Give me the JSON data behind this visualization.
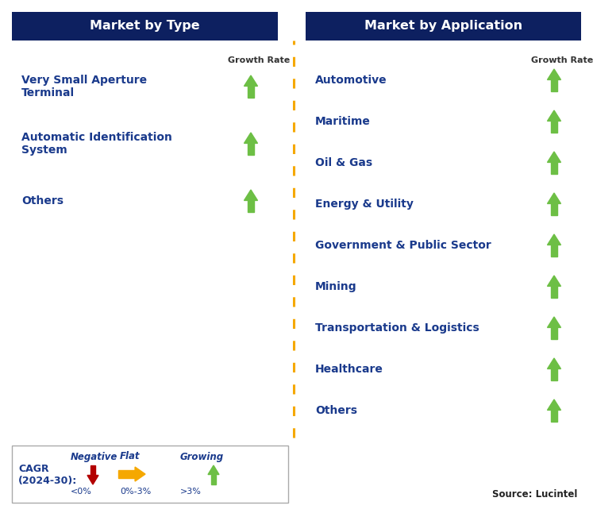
{
  "left_header": "Market by Type",
  "right_header": "Market by Application",
  "header_bg_color": "#0d2060",
  "header_text_color": "#ffffff",
  "growth_rate_label": "Growth Rate",
  "left_items": [
    {
      "label": "Very Small Aperture\nTerminal",
      "arrow": "up_green"
    },
    {
      "label": "Automatic Identification\nSystem",
      "arrow": "up_green"
    },
    {
      "label": "Others",
      "arrow": "up_green"
    }
  ],
  "right_items": [
    {
      "label": "Automotive",
      "arrow": "up_green"
    },
    {
      "label": "Maritime",
      "arrow": "up_green"
    },
    {
      "label": "Oil & Gas",
      "arrow": "up_green"
    },
    {
      "label": "Energy & Utility",
      "arrow": "up_green"
    },
    {
      "label": "Government & Public Sector",
      "arrow": "up_green"
    },
    {
      "label": "Mining",
      "arrow": "up_green"
    },
    {
      "label": "Transportation & Logistics",
      "arrow": "up_green"
    },
    {
      "label": "Healthcare",
      "arrow": "up_green"
    },
    {
      "label": "Others",
      "arrow": "up_green"
    }
  ],
  "item_text_color": "#1a3a8c",
  "green_arrow_color": "#6dbf45",
  "red_arrow_color": "#b30000",
  "yellow_arrow_color": "#f5a800",
  "legend_cagr_label": "CAGR\n(2024-30):",
  "legend_negative_label": "Negative",
  "legend_negative_sublabel": "<0%",
  "legend_flat_label": "Flat",
  "legend_flat_sublabel": "0%-3%",
  "legend_growing_label": "Growing",
  "legend_growing_sublabel": ">3%",
  "source_text": "Source: Lucintel",
  "divider_color": "#f5a800",
  "background_color": "#ffffff",
  "fig_width": 7.47,
  "fig_height": 6.51,
  "dpi": 100
}
